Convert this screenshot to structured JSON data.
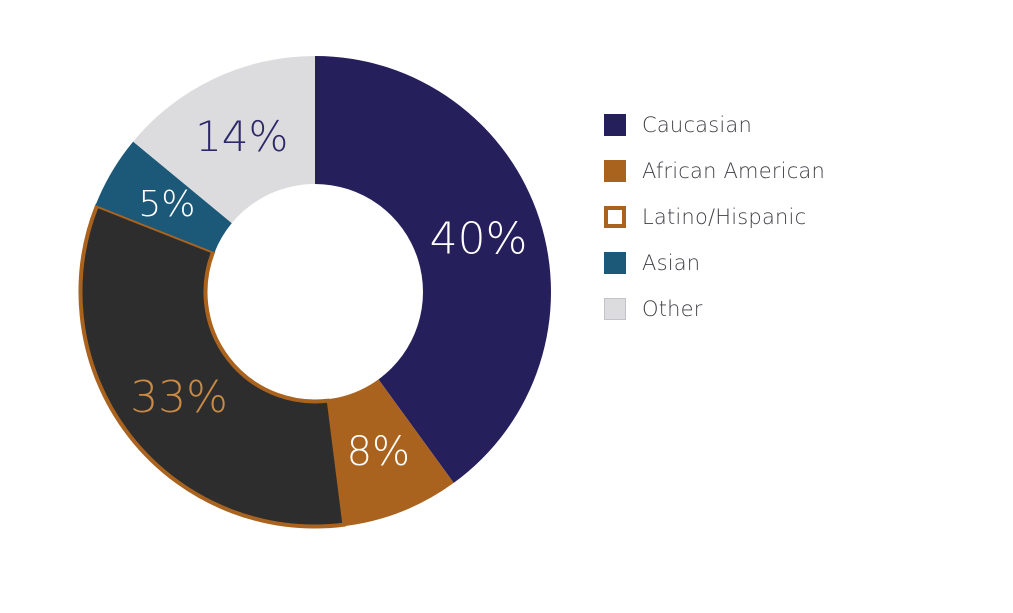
{
  "chart_data": {
    "type": "pie",
    "variant": "donut",
    "categories": [
      "Caucasian",
      "African American",
      "Latino/Hispanic",
      "Asian",
      "Other"
    ],
    "values": [
      40,
      8,
      33,
      5,
      14
    ],
    "labels": [
      "40%",
      "8%",
      "33%",
      "5%",
      "14%"
    ],
    "colors": [
      "#251f5c",
      "#a9631f",
      "#2d2d2d",
      "#1c5878",
      "#dcdcde"
    ],
    "outline_colors": [
      null,
      null,
      "#a9631f",
      null,
      null
    ],
    "label_colors": [
      "#ffffff",
      "#ffffff",
      "#c98a45",
      "#ffffff",
      "#2d2868"
    ],
    "legend": {
      "position": "right",
      "items": [
        {
          "label": "Caucasian",
          "swatch": "#251f5c",
          "style": "filled"
        },
        {
          "label": "African American",
          "swatch": "#a9631f",
          "style": "filled"
        },
        {
          "label": "Latino/Hispanic",
          "swatch": "#a9631f",
          "style": "outline"
        },
        {
          "label": "Asian",
          "swatch": "#1c5878",
          "style": "filled"
        },
        {
          "label": "Other",
          "swatch": "#dcdcde",
          "style": "filled"
        }
      ]
    }
  }
}
